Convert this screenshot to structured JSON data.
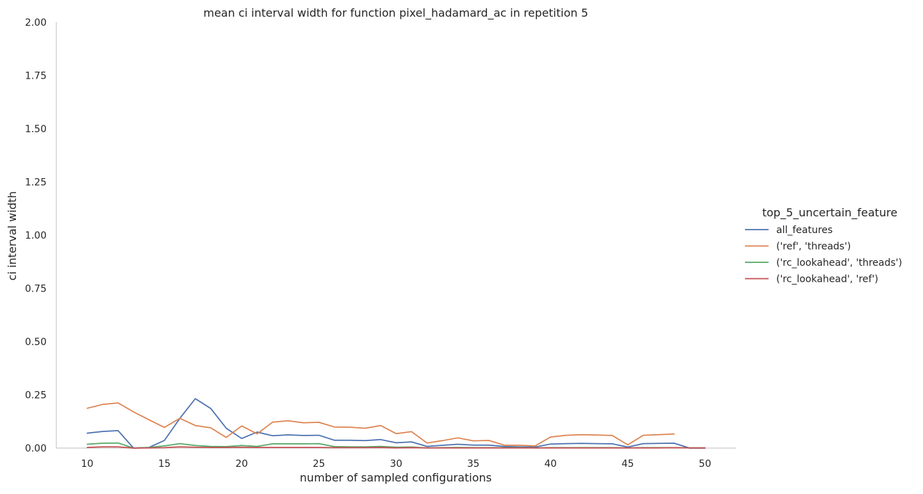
{
  "chart_data": {
    "type": "line",
    "title": "mean ci interval width for function pixel_hadamard_ac in repetition 5",
    "xlabel": "number of sampled configurations",
    "ylabel": "ci interval width",
    "xlim": [
      8,
      52
    ],
    "ylim": [
      0,
      2
    ],
    "xticks": [
      10,
      15,
      20,
      25,
      30,
      35,
      40,
      45,
      50
    ],
    "yticks": [
      "0.00",
      "0.25",
      "0.50",
      "0.75",
      "1.00",
      "1.25",
      "1.50",
      "1.75",
      "2.00"
    ],
    "grid": false,
    "legend": {
      "title": "top_5_uncertain_feature",
      "placement": "right"
    },
    "series": [
      {
        "name": "all_features",
        "color": "#4c72b0",
        "x": [
          10,
          11,
          12,
          13,
          14,
          15,
          16,
          17,
          18,
          19,
          20,
          21,
          22,
          23,
          24,
          25,
          26,
          27,
          28,
          29,
          30,
          31,
          32,
          33,
          34,
          35,
          36,
          37,
          38,
          39,
          40,
          41,
          42,
          43,
          44,
          45,
          46,
          47,
          48,
          49,
          50
        ],
        "y": [
          0.07,
          0.078,
          0.082,
          0.0,
          0.003,
          0.036,
          0.14,
          0.232,
          0.186,
          0.093,
          0.045,
          0.075,
          0.058,
          0.062,
          0.059,
          0.06,
          0.037,
          0.037,
          0.035,
          0.04,
          0.025,
          0.029,
          0.008,
          0.013,
          0.018,
          0.014,
          0.014,
          0.008,
          0.006,
          0.005,
          0.019,
          0.021,
          0.022,
          0.021,
          0.02,
          0.005,
          0.021,
          0.022,
          0.023,
          0.0,
          0.0
        ]
      },
      {
        "name": "('ref', 'threads')",
        "color": "#dd8452",
        "x": [
          10,
          11,
          12,
          13,
          14,
          15,
          16,
          17,
          18,
          19,
          20,
          21,
          22,
          23,
          24,
          25,
          26,
          27,
          28,
          29,
          30,
          31,
          32,
          33,
          34,
          35,
          36,
          37,
          38,
          39,
          40,
          41,
          42,
          43,
          44,
          45,
          46,
          47,
          48
        ],
        "y": [
          0.187,
          0.205,
          0.212,
          0.17,
          0.133,
          0.097,
          0.14,
          0.106,
          0.095,
          0.05,
          0.104,
          0.067,
          0.122,
          0.128,
          0.119,
          0.121,
          0.099,
          0.098,
          0.093,
          0.106,
          0.068,
          0.077,
          0.024,
          0.035,
          0.048,
          0.034,
          0.036,
          0.014,
          0.013,
          0.01,
          0.052,
          0.06,
          0.063,
          0.061,
          0.059,
          0.015,
          0.06,
          0.063,
          0.066
        ]
      },
      {
        "name": "('rc_lookahead', 'threads')",
        "color": "#55a868",
        "x": [
          10,
          11,
          12,
          13,
          14,
          15,
          16,
          17,
          18,
          19,
          20,
          21,
          22,
          23,
          24,
          25,
          26,
          27,
          28,
          29,
          30,
          31,
          32,
          33,
          34,
          35,
          36,
          37,
          38,
          39,
          40,
          41,
          42,
          43,
          44,
          45,
          46,
          47,
          48,
          49,
          50
        ],
        "y": [
          0.018,
          0.023,
          0.024,
          0.0,
          0.003,
          0.01,
          0.021,
          0.012,
          0.008,
          0.007,
          0.012,
          0.008,
          0.02,
          0.02,
          0.02,
          0.021,
          0.007,
          0.006,
          0.006,
          0.008,
          0.004,
          0.005,
          0.001,
          0.002,
          0.003,
          0.002,
          0.002,
          0.002,
          0.002,
          0.001,
          0.002,
          0.002,
          0.002,
          0.002,
          0.002,
          0.001,
          0.002,
          0.002,
          0.002,
          0.001,
          0.001
        ]
      },
      {
        "name": "('rc_lookahead', 'ref')",
        "color": "#c44e52",
        "x": [
          10,
          11,
          12,
          13,
          14,
          15,
          16,
          17,
          18,
          19,
          20,
          21,
          22,
          23,
          24,
          25,
          26,
          27,
          28,
          29,
          30,
          31,
          32,
          33,
          34,
          35,
          36,
          37,
          38,
          39,
          40,
          41,
          42,
          43,
          44,
          45,
          46,
          47,
          48,
          49,
          50
        ],
        "y": [
          0.003,
          0.006,
          0.006,
          0.0,
          0.001,
          0.002,
          0.006,
          0.004,
          0.003,
          0.003,
          0.004,
          0.003,
          0.003,
          0.003,
          0.003,
          0.003,
          0.002,
          0.002,
          0.002,
          0.003,
          0.001,
          0.002,
          0.001,
          0.001,
          0.001,
          0.001,
          0.001,
          0.001,
          0.001,
          0.001,
          0.001,
          0.001,
          0.001,
          0.001,
          0.001,
          0.001,
          0.001,
          0.001,
          0.002,
          0.001,
          0.001
        ]
      }
    ]
  }
}
